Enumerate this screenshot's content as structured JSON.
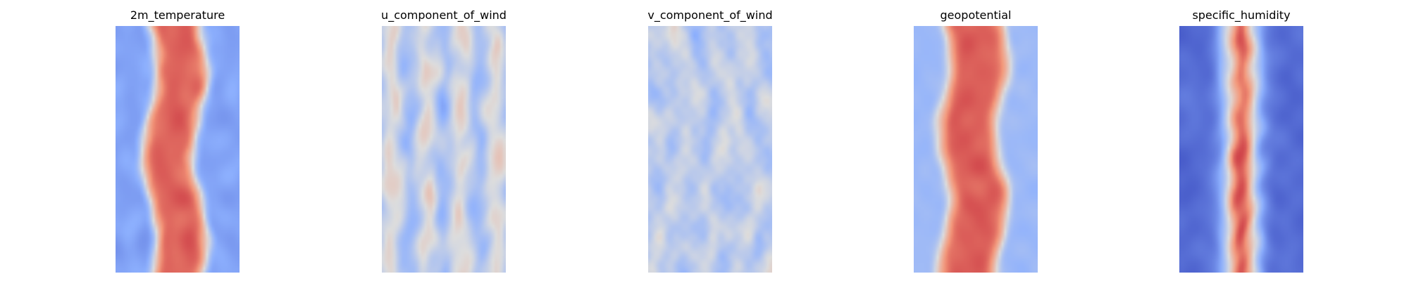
{
  "panels": [
    {
      "title": "2m_temperature",
      "pattern": "temperature",
      "seed": 11
    },
    {
      "title": "u_component_of_wind",
      "pattern": "u_wind",
      "seed": 23
    },
    {
      "title": "v_component_of_wind",
      "pattern": "v_wind",
      "seed": 37
    },
    {
      "title": "geopotential",
      "pattern": "geopotential",
      "seed": 41
    },
    {
      "title": "specific_humidity",
      "pattern": "humidity",
      "seed": 53
    }
  ],
  "colormap": "coolwarm"
}
